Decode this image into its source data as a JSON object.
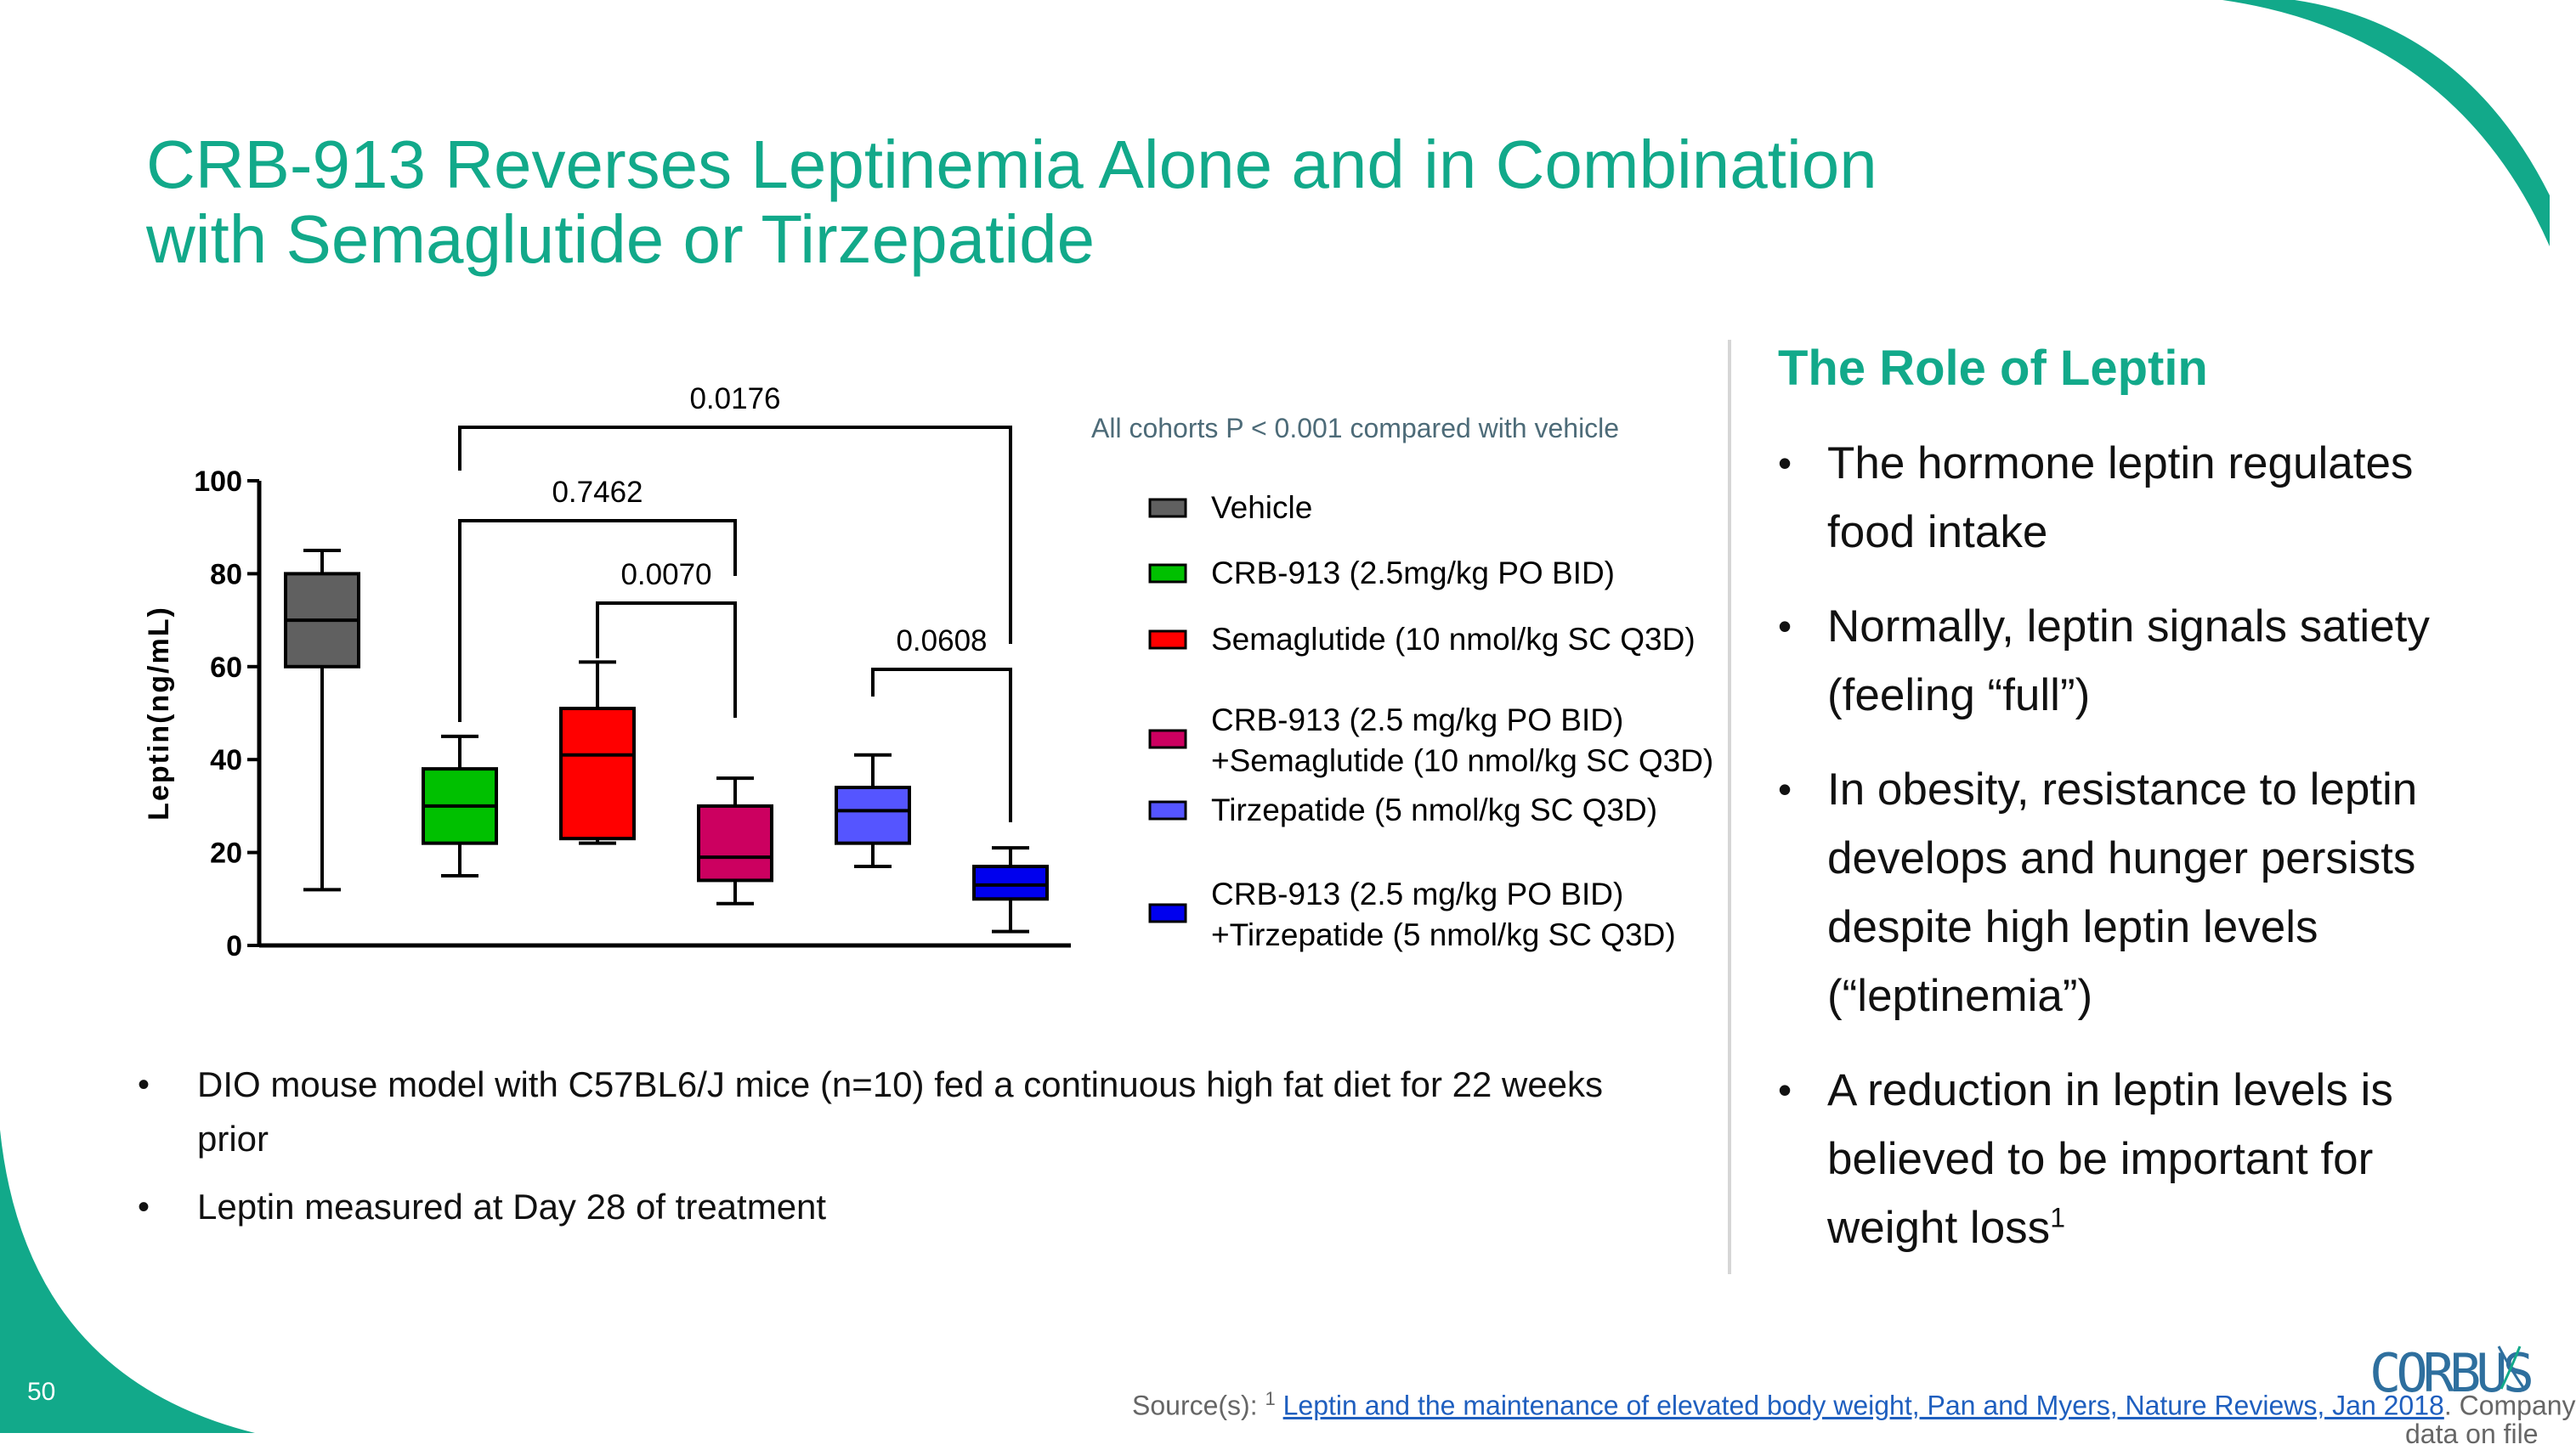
{
  "slide": {
    "title_line1": "CRB-913 Reverses Leptinemia Alone and in Combination",
    "title_line2": "with Semaglutide or Tirzepatide",
    "cohort_note": "All cohorts P < 0.001 compared with vehicle",
    "left_bullets": [
      "DIO mouse model with C57BL6/J mice (n=10) fed a continuous high fat diet for 22 weeks prior",
      "Leptin measured at Day 28 of treatment"
    ],
    "side_heading": "The Role of Leptin",
    "side_bullets": [
      "The hormone leptin regulates food intake",
      "Normally, leptin signals satiety (feeling “full”)",
      "In obesity, resistance to leptin develops and hunger persists despite high leptin levels (“leptinemia”)",
      "A reduction in leptin levels is believed to be important for weight loss"
    ],
    "side_bullet_4_sup": "1",
    "page_number": "50",
    "source_prefix": "Source(s): ",
    "source_sup": "1",
    "source_link": "Leptin and the maintenance of elevated body weight, Pan and Myers, Nature Reviews, Jan 2018",
    "source_suffix": ". Company",
    "source_more": "data on file",
    "logo_text": "CORBUS",
    "colors": {
      "accent": "#12a98a",
      "vehicle": "#606060",
      "crb913": "#00c000",
      "semaglutide": "#ff0000",
      "crb913_semaglutide": "#cc0060",
      "tirzepatide": "#5555ff",
      "crb913_tirzepatide": "#0000ee"
    }
  },
  "chart_data": {
    "type": "box",
    "ylabel": "Leptin(ng/mL)",
    "ylim": [
      0,
      100
    ],
    "yticks": [
      0,
      20,
      40,
      60,
      80,
      100
    ],
    "series": [
      {
        "name": "Vehicle",
        "legend": [
          "Vehicle"
        ],
        "min": 12,
        "q1": 60,
        "median": 70,
        "q3": 80,
        "max": 85,
        "color": "#606060"
      },
      {
        "name": "CRB-913 (2.5mg/kg PO BID)",
        "legend": [
          "CRB-913 (2.5mg/kg PO BID)"
        ],
        "min": 15,
        "q1": 22,
        "median": 30,
        "q3": 38,
        "max": 45,
        "color": "#00c000"
      },
      {
        "name": "Semaglutide (10 nmol/kg SC Q3D)",
        "legend": [
          "Semaglutide (10 nmol/kg SC Q3D)"
        ],
        "min": 22,
        "q1": 23,
        "median": 41,
        "q3": 51,
        "max": 61,
        "color": "#ff0000"
      },
      {
        "name": "CRB-913 (2.5 mg/kg PO BID) +Semaglutide (10 nmol/kg SC Q3D)",
        "legend": [
          "CRB-913 (2.5 mg/kg PO BID)",
          "+Semaglutide (10 nmol/kg SC Q3D)"
        ],
        "min": 9,
        "q1": 14,
        "median": 19,
        "q3": 30,
        "max": 36,
        "color": "#cc0060"
      },
      {
        "name": "Tirzepatide (5 nmol/kg SC Q3D)",
        "legend": [
          "Tirzepatide (5 nmol/kg SC Q3D)"
        ],
        "min": 17,
        "q1": 22,
        "median": 29,
        "q3": 34,
        "max": 41,
        "color": "#5555ff"
      },
      {
        "name": "CRB-913 (2.5 mg/kg PO BID) +Tirzepatide (5 nmol/kg SC Q3D)",
        "legend": [
          "CRB-913 (2.5 mg/kg PO BID)",
          "+Tirzepatide (5 nmol/kg SC Q3D)"
        ],
        "min": 3,
        "q1": 10,
        "median": 13,
        "q3": 17,
        "max": 21,
        "color": "#0000ee"
      }
    ],
    "comparisons": [
      {
        "from": 1,
        "to": 5,
        "label": "0.0176"
      },
      {
        "from": 1,
        "to": 3,
        "label": "0.7462"
      },
      {
        "from": 2,
        "to": 3,
        "label": "0.0070"
      },
      {
        "from": 4,
        "to": 5,
        "label": "0.0608"
      }
    ],
    "grid": false,
    "legend_position": "right"
  }
}
